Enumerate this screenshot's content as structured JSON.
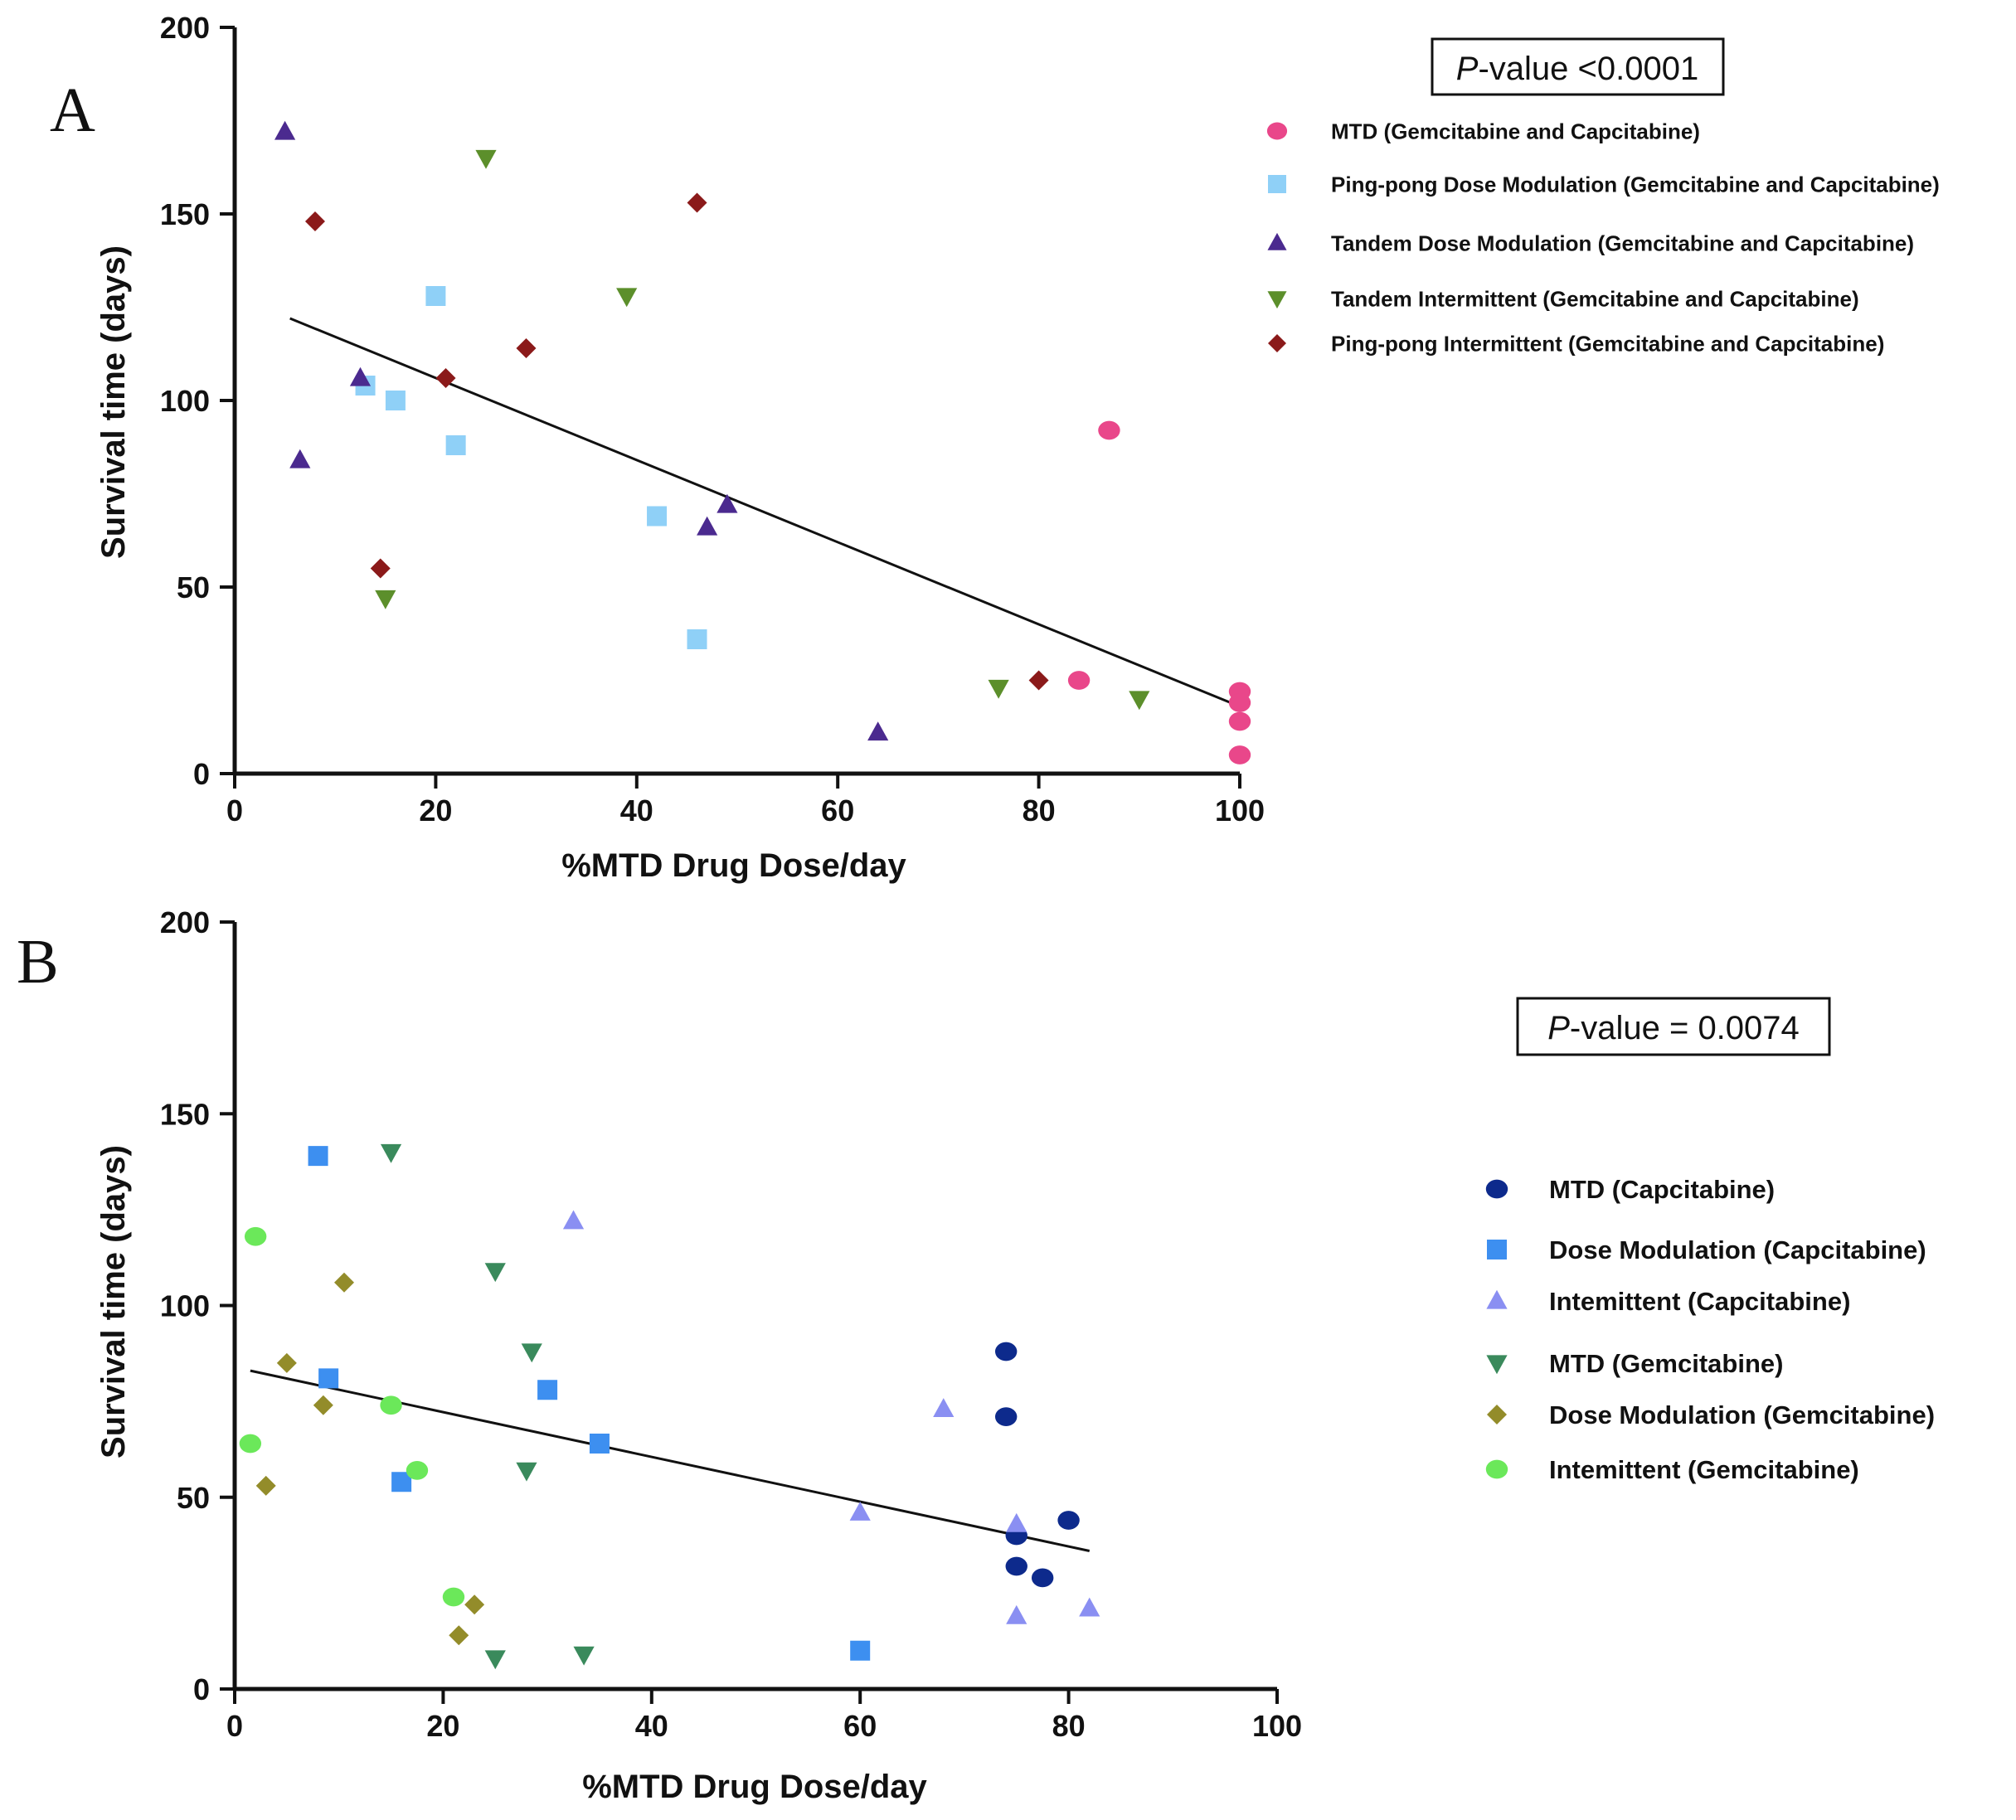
{
  "chart_data": [
    {
      "type": "scatter",
      "panel_label": "A",
      "xlabel": "%MTD Drug Dose/day",
      "ylabel": "Survival time (days)",
      "xlim": [
        0,
        100
      ],
      "ylim": [
        0,
        200
      ],
      "xticks": [
        0,
        20,
        40,
        60,
        80,
        100
      ],
      "yticks": [
        0,
        50,
        100,
        150,
        200
      ],
      "annotation": {
        "italic": "P",
        "rest": "-value <0.0001"
      },
      "legend_position": "top-right",
      "series": [
        {
          "name": "MTD (Gemcitabine and Capcitabine)",
          "marker": "circle",
          "color": "#e9478a",
          "points": [
            [
              87,
              92
            ],
            [
              84,
              25
            ],
            [
              100,
              22
            ],
            [
              100,
              19
            ],
            [
              100,
              14
            ],
            [
              100,
              5
            ]
          ]
        },
        {
          "name": "Ping-pong Dose Modulation (Gemcitabine and Capcitabine)",
          "marker": "square",
          "color": "#8fd0f7",
          "points": [
            [
              20,
              128
            ],
            [
              13,
              104
            ],
            [
              16,
              100
            ],
            [
              22,
              88
            ],
            [
              42,
              69
            ],
            [
              46,
              36
            ]
          ]
        },
        {
          "name": "Tandem Dose Modulation (Gemcitabine and Capcitabine)",
          "marker": "triangle-up",
          "color": "#4b2a8f",
          "points": [
            [
              5,
              172
            ],
            [
              12.5,
              106
            ],
            [
              6.5,
              84
            ],
            [
              49,
              72
            ],
            [
              47,
              66
            ],
            [
              64,
              11
            ]
          ]
        },
        {
          "name": "Tandem Intermittent (Gemcitabine and Capcitabine)",
          "marker": "triangle-down",
          "color": "#5c8f2b",
          "points": [
            [
              25,
              165
            ],
            [
              39,
              128
            ],
            [
              15,
              47
            ],
            [
              76,
              23
            ],
            [
              90,
              20
            ]
          ]
        },
        {
          "name": "Ping-pong Intermittent (Gemcitabine and Capcitabine)",
          "marker": "diamond",
          "color": "#8b1a1a",
          "points": [
            [
              46,
              153
            ],
            [
              8,
              148
            ],
            [
              29,
              114
            ],
            [
              21,
              106
            ],
            [
              14.5,
              55
            ],
            [
              80,
              25
            ]
          ]
        }
      ],
      "regression_line": {
        "x": [
          5.5,
          100
        ],
        "y": [
          122,
          18
        ]
      }
    },
    {
      "type": "scatter",
      "panel_label": "B",
      "xlabel": "%MTD Drug Dose/day",
      "ylabel": "Survival time (days)",
      "xlim": [
        0,
        100
      ],
      "ylim": [
        0,
        200
      ],
      "xticks": [
        0,
        20,
        40,
        60,
        80,
        100
      ],
      "yticks": [
        0,
        50,
        100,
        150,
        200
      ],
      "annotation": {
        "italic": "P",
        "rest": "-value = 0.0074"
      },
      "legend_position": "right",
      "series": [
        {
          "name": "MTD (Capcitabine)",
          "marker": "circle",
          "color": "#0d2a8c",
          "points": [
            [
              74,
              88
            ],
            [
              74,
              71
            ],
            [
              80,
              44
            ],
            [
              75,
              40
            ],
            [
              75,
              32
            ],
            [
              77.5,
              29
            ]
          ]
        },
        {
          "name": "Dose Modulation (Capcitabine)",
          "marker": "square",
          "color": "#3d8ff0",
          "points": [
            [
              8,
              139
            ],
            [
              9,
              81
            ],
            [
              30,
              78
            ],
            [
              35,
              64
            ],
            [
              16,
              54
            ],
            [
              60,
              10
            ]
          ]
        },
        {
          "name": "Intemittent (Capcitabine)",
          "marker": "triangle-up",
          "color": "#8a8ff2",
          "points": [
            [
              32.5,
              122
            ],
            [
              68,
              73
            ],
            [
              60,
              46
            ],
            [
              75,
              43
            ],
            [
              82,
              21
            ],
            [
              75,
              19
            ]
          ]
        },
        {
          "name": "MTD (Gemcitabine)",
          "marker": "triangle-down",
          "color": "#3a8a5c",
          "points": [
            [
              15,
              140
            ],
            [
              25,
              109
            ],
            [
              28.5,
              88
            ],
            [
              28,
              57
            ],
            [
              33.5,
              9
            ],
            [
              25,
              8
            ]
          ]
        },
        {
          "name": "Dose Modulation (Gemcitabine)",
          "marker": "diamond",
          "color": "#938c2a",
          "points": [
            [
              10.5,
              106
            ],
            [
              5,
              85
            ],
            [
              8.5,
              74
            ],
            [
              3,
              53
            ],
            [
              23,
              22
            ],
            [
              21.5,
              14
            ]
          ]
        },
        {
          "name": "Intemittent (Gemcitabine)",
          "marker": "circle",
          "color": "#6be85a",
          "points": [
            [
              2,
              118
            ],
            [
              15,
              74
            ],
            [
              1.5,
              64
            ],
            [
              17.5,
              57
            ],
            [
              21,
              24
            ]
          ]
        }
      ],
      "regression_line": {
        "x": [
          1.5,
          82
        ],
        "y": [
          83,
          36
        ]
      }
    }
  ]
}
